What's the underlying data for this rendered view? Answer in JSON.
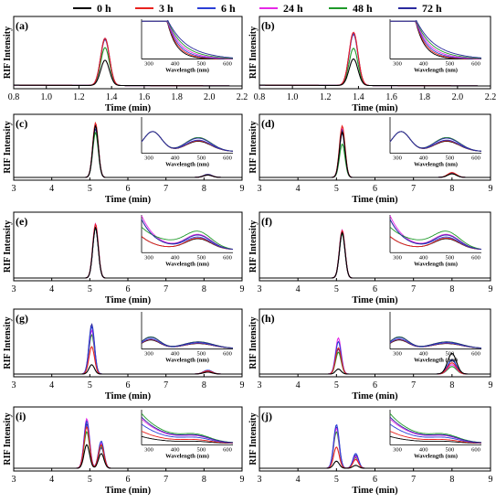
{
  "legend": {
    "entries": [
      {
        "label": "0 h",
        "color": "#000000"
      },
      {
        "label": "3 h",
        "color": "#e8231f"
      },
      {
        "label": "6 h",
        "color": "#2b3fd6"
      },
      {
        "label": "24 h",
        "color": "#e628e6"
      },
      {
        "label": "48 h",
        "color": "#1f9a2a"
      },
      {
        "label": "72 h",
        "color": "#2a2a9e"
      }
    ]
  },
  "chart_data": [
    {
      "panel": "(a)",
      "type": "line",
      "xlabel": "Time (min)",
      "ylabel": "RIF Intensity",
      "xlim": [
        0.8,
        2.2
      ],
      "xticks": [
        "0.8",
        "1.0",
        "1.2",
        "1.4",
        "1.6",
        "1.8",
        "2.0",
        "2.2"
      ],
      "peaks": [
        {
          "t": 1.36,
          "heights": [
            0.38,
            0.71,
            0.71,
            0.71,
            0.57,
            0.69
          ]
        }
      ],
      "inset": {
        "xlabel": "Wavelength (nm)",
        "xticks": [
          "300",
          "400",
          "500",
          "600"
        ],
        "shape": "decay"
      }
    },
    {
      "panel": "(b)",
      "type": "line",
      "xlabel": "Time (min)",
      "ylabel": "RIF Intensity",
      "xlim": [
        0.8,
        2.2
      ],
      "xticks": [
        "0.8",
        "1.0",
        "1.2",
        "1.4",
        "1.6",
        "1.8",
        "2.0",
        "2.2"
      ],
      "peaks": [
        {
          "t": 1.37,
          "heights": [
            0.4,
            0.8,
            0.78,
            0.8,
            0.56,
            0.77
          ]
        }
      ],
      "inset": {
        "xlabel": "Wavelength (nm)",
        "xticks": [
          "300",
          "400",
          "500",
          "600"
        ],
        "shape": "decay"
      }
    },
    {
      "panel": "(c)",
      "type": "line",
      "xlabel": "Time (min)",
      "ylabel": "RIF Intensity",
      "xlim": [
        3,
        9
      ],
      "xticks": [
        "3",
        "4",
        "5",
        "6",
        "7",
        "8",
        "9"
      ],
      "peaks": [
        {
          "t": 5.15,
          "heights": [
            0.85,
            0.9,
            0.86,
            0.88,
            0.74,
            0.8
          ]
        },
        {
          "t": 8.1,
          "heights": [
            0.04,
            0.04,
            0.04,
            0.04,
            0.04,
            0.05
          ]
        }
      ],
      "inset": {
        "xlabel": "Wavelength (nm)",
        "xticks": [
          "300",
          "400",
          "500",
          "600"
        ],
        "shape": "double"
      }
    },
    {
      "panel": "(d)",
      "type": "line",
      "xlabel": "Time (min)",
      "ylabel": "RIF Intensity",
      "xlim": [
        3,
        9
      ],
      "xticks": [
        "3",
        "4",
        "5",
        "6",
        "7",
        "8",
        "9"
      ],
      "peaks": [
        {
          "t": 5.15,
          "heights": [
            0.75,
            0.85,
            0.78,
            0.8,
            0.55,
            0.73
          ]
        },
        {
          "t": 8.0,
          "heights": [
            0.06,
            0.08,
            0.07,
            0.07,
            0.06,
            0.07
          ]
        }
      ],
      "inset": {
        "xlabel": "Wavelength (nm)",
        "xticks": [
          "300",
          "400",
          "500",
          "600"
        ],
        "shape": "double"
      }
    },
    {
      "panel": "(e)",
      "type": "line",
      "xlabel": "Time (min)",
      "ylabel": "RIF Intensity",
      "xlim": [
        3,
        9
      ],
      "xticks": [
        "3",
        "4",
        "5",
        "6",
        "7",
        "8",
        "9"
      ],
      "peaks": [
        {
          "t": 5.15,
          "heights": [
            0.8,
            0.85,
            0.8,
            0.86,
            0.79,
            0.8
          ]
        }
      ],
      "inset": {
        "xlabel": "Wavelength (nm)",
        "xticks": [
          "300",
          "400",
          "500",
          "600"
        ],
        "shape": "double-rise"
      }
    },
    {
      "panel": "(f)",
      "type": "line",
      "xlabel": "Time (min)",
      "ylabel": "RIF Intensity",
      "xlim": [
        3,
        9
      ],
      "xticks": [
        "3",
        "4",
        "5",
        "6",
        "7",
        "8",
        "9"
      ],
      "peaks": [
        {
          "t": 5.15,
          "heights": [
            0.72,
            0.75,
            0.72,
            0.76,
            0.7,
            0.72
          ]
        }
      ],
      "inset": {
        "xlabel": "Wavelength (nm)",
        "xticks": [
          "300",
          "400",
          "500",
          "600"
        ],
        "shape": "double-rise"
      }
    },
    {
      "panel": "(g)",
      "type": "line",
      "xlabel": "Time (min)",
      "ylabel": "RIF Intensity",
      "xlim": [
        3,
        9
      ],
      "xticks": [
        "3",
        "4",
        "5",
        "6",
        "7",
        "8",
        "9"
      ],
      "peaks": [
        {
          "t": 5.05,
          "heights": [
            0.15,
            0.44,
            0.76,
            0.7,
            0.63,
            0.8
          ]
        },
        {
          "t": 8.1,
          "heights": [
            0.03,
            0.05,
            0.06,
            0.05,
            0.05,
            0.06
          ]
        }
      ],
      "inset": {
        "xlabel": "Wavelength (nm)",
        "xticks": [
          "300",
          "400",
          "500",
          "600"
        ],
        "shape": "double-flat"
      }
    },
    {
      "panel": "(h)",
      "type": "line",
      "xlabel": "Time (min)",
      "ylabel": "RIF Intensity",
      "xlim": [
        3,
        9
      ],
      "xticks": [
        "3",
        "4",
        "5",
        "6",
        "7",
        "8",
        "9"
      ],
      "peaks": [
        {
          "t": 5.05,
          "heights": [
            0.08,
            0.42,
            0.52,
            0.58,
            0.35,
            0.4
          ]
        },
        {
          "t": 8.0,
          "heights": [
            0.33,
            0.18,
            0.23,
            0.15,
            0.12,
            0.22
          ]
        }
      ],
      "inset": {
        "xlabel": "Wavelength (nm)",
        "xticks": [
          "300",
          "400",
          "500",
          "600"
        ],
        "shape": "double-flat"
      }
    },
    {
      "panel": "(i)",
      "type": "line",
      "xlabel": "Time (min)",
      "ylabel": "RIF Intensity",
      "xlim": [
        3,
        9
      ],
      "xticks": [
        "3",
        "4",
        "5",
        "6",
        "7",
        "8",
        "9"
      ],
      "peaks": [
        {
          "t": 4.92,
          "heights": [
            0.4,
            0.7,
            0.8,
            0.84,
            0.62,
            0.75
          ]
        },
        {
          "t": 5.3,
          "heights": [
            0.25,
            0.4,
            0.46,
            0.43,
            0.38,
            0.35
          ]
        }
      ],
      "inset": {
        "xlabel": "Wavelength (nm)",
        "xticks": [
          "300",
          "400",
          "500",
          "600"
        ],
        "shape": "decay-bump"
      }
    },
    {
      "panel": "(j)",
      "type": "line",
      "xlabel": "Time (min)",
      "ylabel": "RIF Intensity",
      "xlim": [
        3,
        9
      ],
      "xticks": [
        "3",
        "4",
        "5",
        "6",
        "7",
        "8",
        "9"
      ],
      "peaks": [
        {
          "t": 5.0,
          "heights": [
            0.12,
            0.36,
            0.74,
            0.68,
            0.62,
            0.7
          ]
        },
        {
          "t": 5.5,
          "heights": [
            0.05,
            0.15,
            0.25,
            0.2,
            0.18,
            0.22
          ]
        }
      ],
      "inset": {
        "xlabel": "Wavelength (nm)",
        "xticks": [
          "300",
          "400",
          "500",
          "600"
        ],
        "shape": "decay-bump"
      }
    }
  ]
}
